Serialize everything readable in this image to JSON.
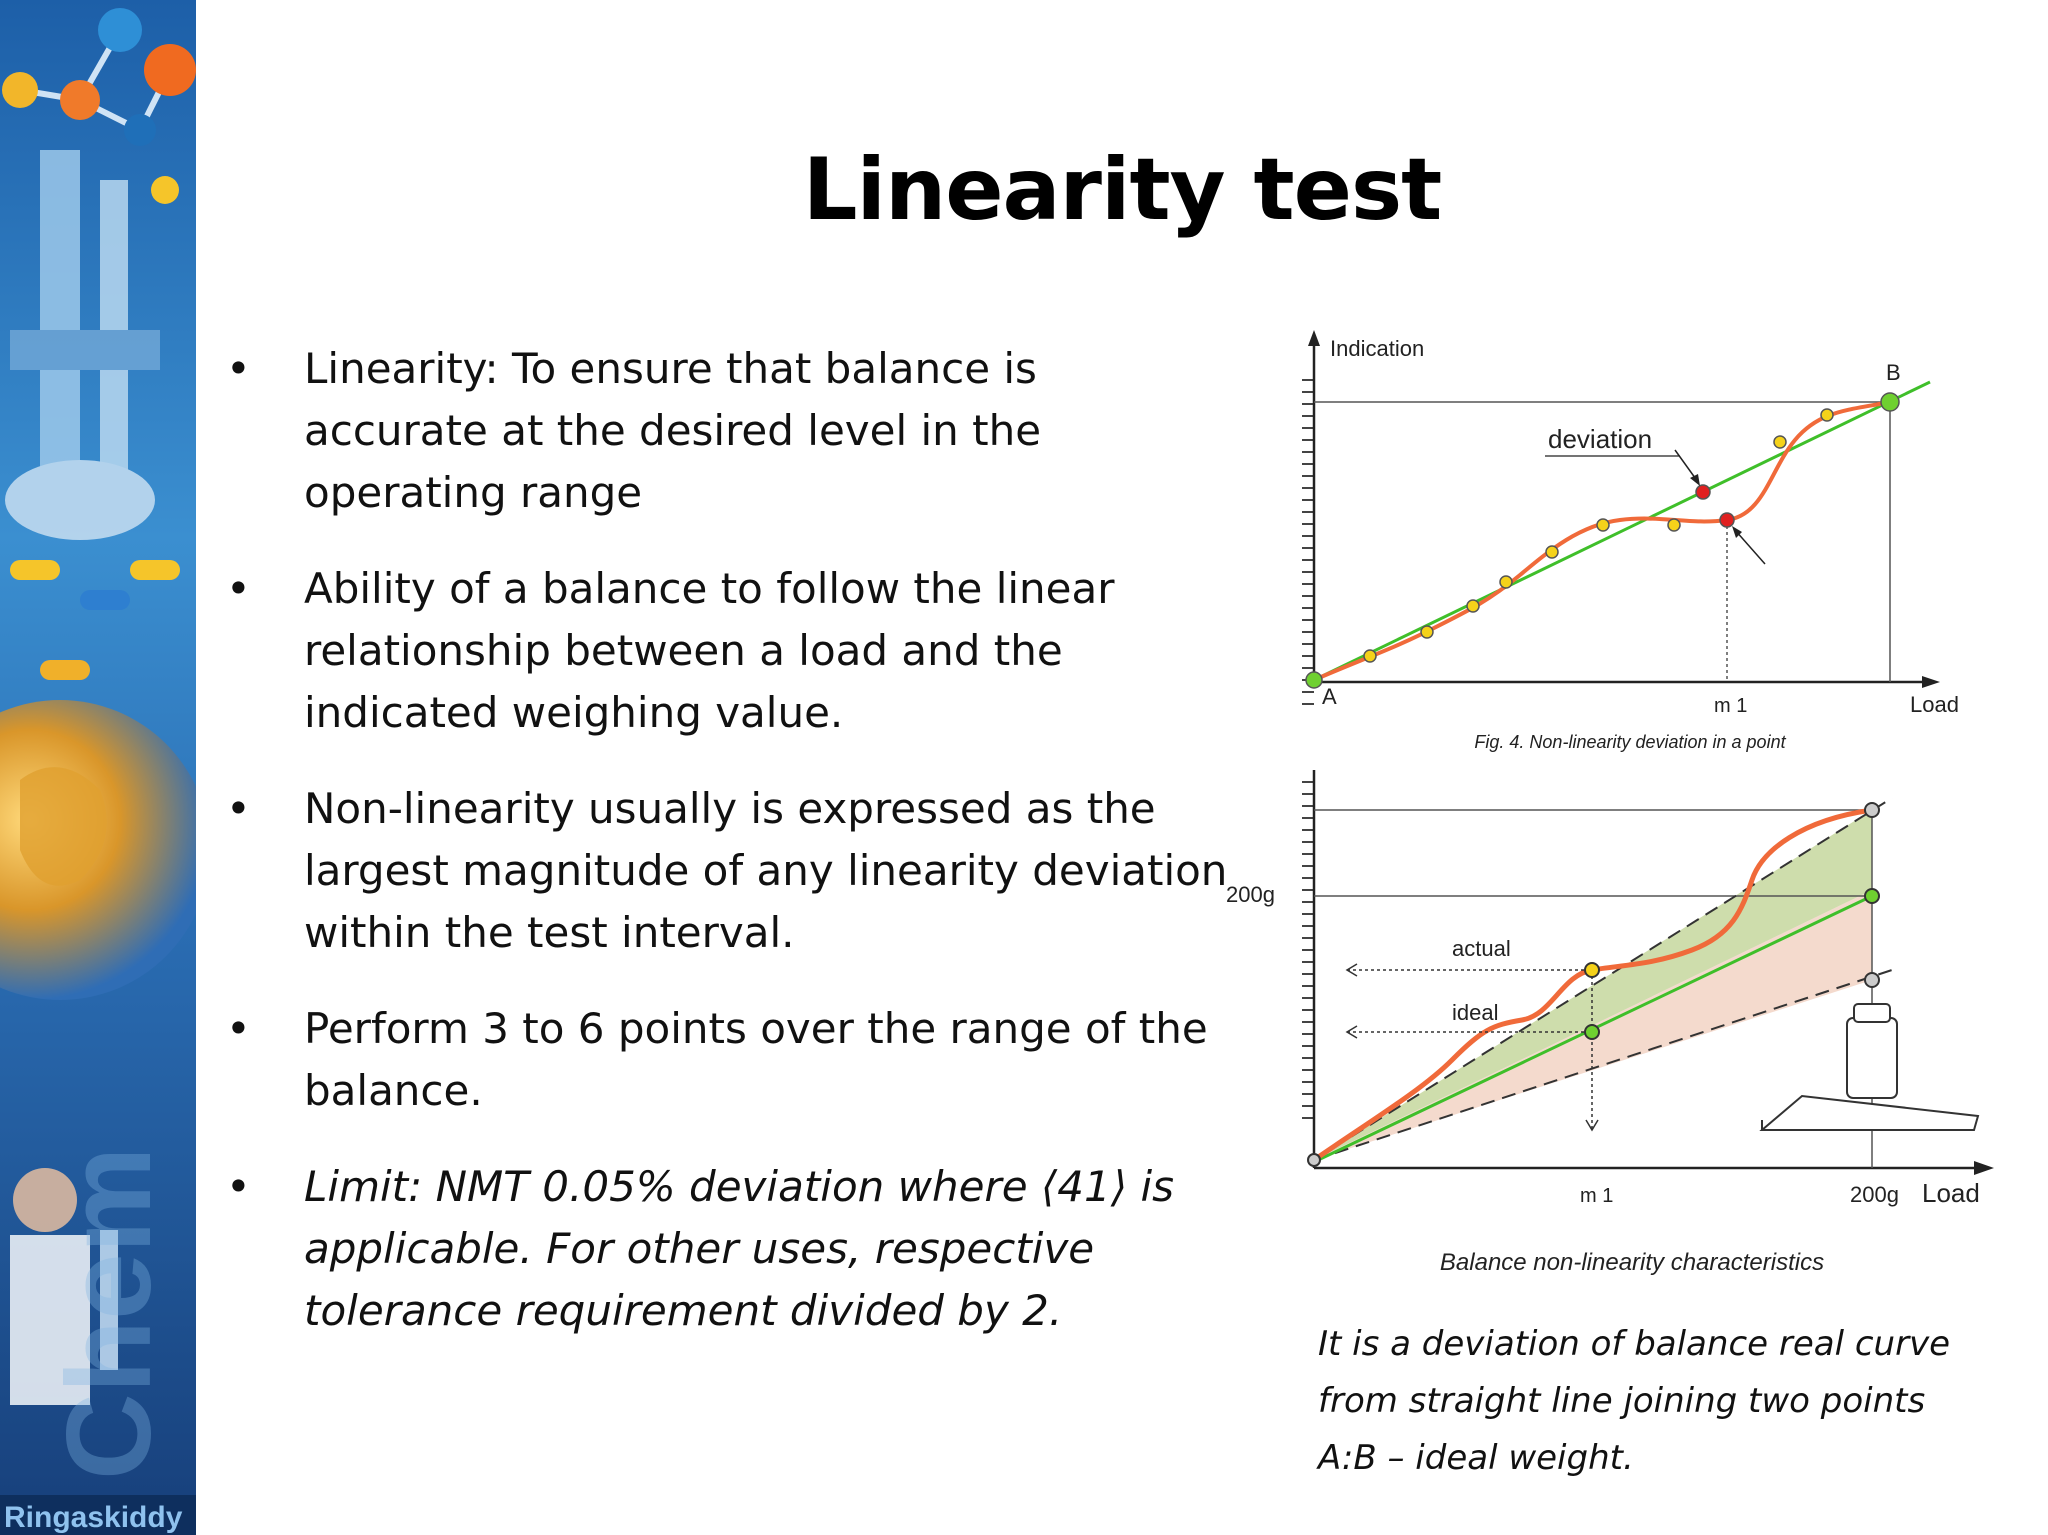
{
  "slide": {
    "title": "Linearity test",
    "bullets": [
      "Linearity:  To ensure that balance is accurate at the desired level in the operating range",
      "Ability of a balance to follow the linear relationship between a load and the indicated weighing value.",
      "Non-linearity usually is expressed as the largest magnitude of any linearity deviation within the test interval.",
      "Perform 3 to 6 points over the range of  the balance.",
      "Limit: NMT 0.05% deviation where ⟨41⟩ is applicable. For other uses, respective tolerance requirement divided by 2."
    ],
    "bullet_glyph": "•",
    "caption": "It is a deviation of balance real curve from straight line joining two points A:B – ideal weight.",
    "sidebar_brand": "Ringaskiddy"
  },
  "figure_top": {
    "y_axis_label": "Indication",
    "x_axis_label": "Load",
    "point_a": "A",
    "point_b": "B",
    "m1_label": "m 1",
    "deviation_label": "deviation",
    "caption": "Fig. 4. Non-linearity deviation in a point"
  },
  "figure_bottom": {
    "y_tick_label": "200g",
    "x_tick_m1": "m 1",
    "x_tick_200g": "200g",
    "x_axis_label": "Load",
    "actual_label": "actual",
    "ideal_label": "ideal",
    "caption": "Balance non-linearity characteristics"
  },
  "colors": {
    "ideal_line": "#3fbf2a",
    "actual_curve": "#f06a3a",
    "point_fill": "#f5d21a",
    "deviation_point": "#e02020",
    "shade_green": "#c9d9a3",
    "shade_pink": "#f3d6c8"
  }
}
